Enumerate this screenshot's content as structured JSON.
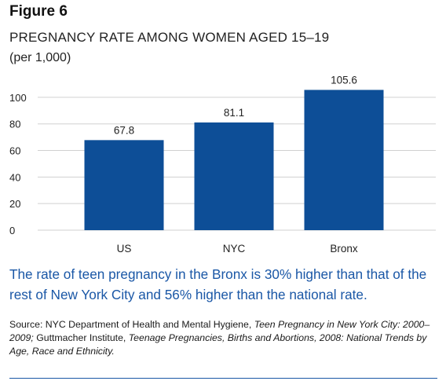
{
  "figure_label": "Figure 6",
  "title": "PREGNANCY RATE AMONG WOMEN AGED 15–19",
  "subtitle": "(per 1,000)",
  "takeaway": "The rate of teen pregnancy in the Bronx is 30% higher than that of the rest of New York City and 56% higher than the national rate.",
  "source": {
    "prefix": "Source: NYC Department of Health and Mental Hygiene, ",
    "title1": "Teen Pregnancy in New York City: 2000–2009;",
    "middle": " Guttmacher Institute, ",
    "title2": "Teenage Pregnancies, Births and Abortions, 2008: National Trends by Age, Race and Ethnicity."
  },
  "colors": {
    "bar": "#0d4e97",
    "grid": "#d0d0d0",
    "accent": "#1a57a6"
  },
  "chart_data": {
    "type": "bar",
    "categories": [
      "US",
      "NYC",
      "Bronx"
    ],
    "values": [
      67.8,
      81.1,
      105.6
    ],
    "value_labels": [
      "67.8",
      "81.1",
      "105.6"
    ],
    "yticks": [
      0,
      20,
      40,
      60,
      80,
      100
    ],
    "ylim": [
      0,
      110
    ],
    "grid": true,
    "xlabel": "",
    "ylabel": ""
  }
}
